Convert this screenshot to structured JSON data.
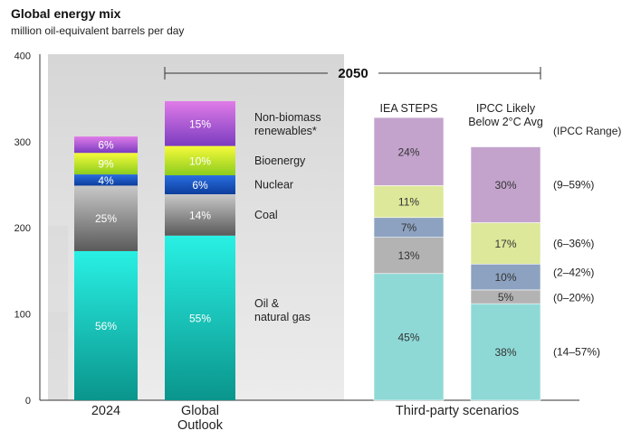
{
  "chart_data": {
    "type": "bar",
    "stacked": true,
    "title": "Global energy mix",
    "subtitle": "million oil-equivalent barrels per day",
    "ylim": [
      0,
      400
    ],
    "yticks": [
      "0",
      "100",
      "200",
      "300",
      "400"
    ],
    "grid": false,
    "groups": [
      {
        "label": "2024",
        "categories": [
          "2024"
        ]
      },
      {
        "label": "Global Outlook",
        "categories": [
          "Global Outlook"
        ]
      },
      {
        "label": "Third-party scenarios",
        "categories": [
          "IEA STEPS",
          "IPCC Likely Below 2°C Avg"
        ]
      }
    ],
    "bars": [
      {
        "category": "2024",
        "label_lines": [
          "2024"
        ],
        "palette": "shell",
        "segments": [
          {
            "name": "Oil & natural gas",
            "value": 173,
            "label": "56%"
          },
          {
            "name": "Coal",
            "value": 76,
            "label": "25%"
          },
          {
            "name": "Nuclear",
            "value": 13,
            "label": "4%"
          },
          {
            "name": "Bioenergy",
            "value": 25,
            "label": "9%"
          },
          {
            "name": "Non-biomass renewables*",
            "value": 19,
            "label": "6%"
          }
        ]
      },
      {
        "category": "Global Outlook",
        "label_lines": [
          "Global",
          "Outlook"
        ],
        "palette": "shell",
        "segments": [
          {
            "name": "Oil & natural gas",
            "value": 191,
            "label": "55%"
          },
          {
            "name": "Coal",
            "value": 48,
            "label": "14%"
          },
          {
            "name": "Nuclear",
            "value": 22,
            "label": "6%"
          },
          {
            "name": "Bioenergy",
            "value": 34,
            "label": "10%"
          },
          {
            "name": "Non-biomass renewables*",
            "value": 52,
            "label": "15%"
          }
        ]
      },
      {
        "category": "IEA STEPS",
        "label_lines": [
          "IEA STEPS"
        ],
        "palette": "third",
        "segments": [
          {
            "name": "Oil & natural gas",
            "value": 147,
            "label": "45%"
          },
          {
            "name": "Coal",
            "value": 42,
            "label": "13%"
          },
          {
            "name": "Nuclear",
            "value": 23,
            "label": "7%"
          },
          {
            "name": "Bioenergy",
            "value": 37,
            "label": "11%"
          },
          {
            "name": "Non-biomass renewables*",
            "value": 79,
            "label": "24%"
          }
        ]
      },
      {
        "category": "IPCC Likely Below 2°C Avg",
        "label_lines": [
          "IPCC Likely",
          "Below 2°C Avg"
        ],
        "palette": "third",
        "segments": [
          {
            "name": "Oil & natural gas",
            "value": 112,
            "label": "38%"
          },
          {
            "name": "Coal",
            "value": 16,
            "label": "5%"
          },
          {
            "name": "Nuclear",
            "value": 30,
            "label": "10%"
          },
          {
            "name": "Bioenergy",
            "value": 48,
            "label": "17%"
          },
          {
            "name": "Non-biomass renewables*",
            "value": 88,
            "label": "30%"
          }
        ]
      }
    ],
    "legend": [
      {
        "name": "Non-biomass renewables*",
        "lines": [
          "Non-biomass",
          "renewables*"
        ]
      },
      {
        "name": "Bioenergy",
        "lines": [
          "Bioenergy"
        ]
      },
      {
        "name": "Nuclear",
        "lines": [
          "Nuclear"
        ]
      },
      {
        "name": "Coal",
        "lines": [
          "Coal"
        ]
      },
      {
        "name": "Oil & natural gas",
        "lines": [
          "Oil &",
          "natural gas"
        ]
      }
    ],
    "bracket_label": "2050",
    "ipcc_range": {
      "header": "(IPCC Range)",
      "ranges": {
        "Non-biomass renewables*": "(9–59%)",
        "Bioenergy": "(6–36%)",
        "Nuclear": "(2–42%)",
        "Coal": "(0–20%)",
        "Oil & natural gas": "(14–57%)"
      }
    },
    "colors": {
      "shell": {
        "Oil & natural gas": [
          "#29f0e4",
          "#0a958c"
        ],
        "Coal": [
          "#c8c8c8",
          "#5a5a5a"
        ],
        "Nuclear": [
          "#2a6ee0",
          "#0c3d9c"
        ],
        "Bioenergy": [
          "#f6fb3a",
          "#8ccc1e"
        ],
        "Non-biomass renewables*": [
          "#e07ce8",
          "#7c3cc0"
        ]
      },
      "third": {
        "Oil & natural gas": "#8ed9d6",
        "Coal": "#b3b3b3",
        "Nuclear": "#8da2c0",
        "Bioenergy": "#dde89a",
        "Non-biomass renewables*": "#c3a3cc"
      },
      "shell_label_text": "#ffffff",
      "third_label_text": "#333333",
      "backdrop": [
        "#d6d6d6",
        "#ececec"
      ]
    }
  }
}
